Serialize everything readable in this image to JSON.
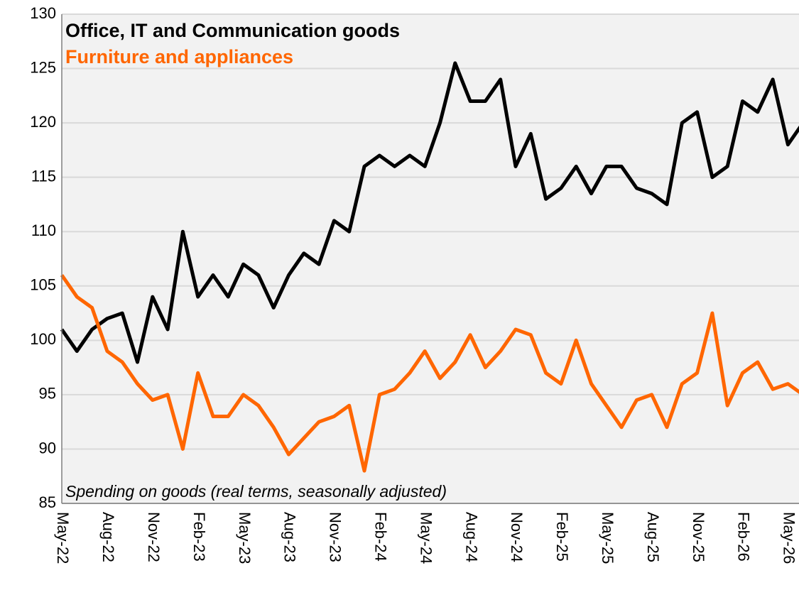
{
  "chart_data": {
    "type": "line",
    "annotation": "Spending on goods (real terms, seasonally adjusted)",
    "categories": [
      "May-22",
      null,
      null,
      "Aug-22",
      null,
      null,
      "Nov-22",
      null,
      null,
      "Feb-23",
      null,
      null,
      "May-23",
      null,
      null,
      "Aug-23",
      null,
      null,
      "Nov-23",
      null,
      null,
      "Feb-24",
      null,
      null,
      "May-24",
      null,
      null,
      "Aug-24",
      null,
      null,
      "Nov-24",
      null,
      null,
      "Feb-25",
      null,
      null,
      "May-25",
      null,
      null,
      "Aug-25",
      null,
      null,
      "Nov-25",
      null,
      null,
      "Feb-26",
      null,
      null,
      "May-26",
      null
    ],
    "series": [
      {
        "name": "Office, IT and Communication goods",
        "color": "#000000",
        "values": [
          101,
          99,
          101,
          102,
          102.5,
          98,
          104,
          101,
          110,
          104,
          106,
          104,
          107,
          106,
          103,
          106,
          108,
          107,
          111,
          110,
          116,
          117,
          116,
          117,
          116,
          120,
          125.5,
          122,
          122,
          124,
          116,
          119,
          113,
          114,
          116,
          113.5,
          116,
          116,
          114,
          113.5,
          112.5,
          120,
          121,
          115,
          116,
          122,
          121,
          124,
          118,
          120
        ]
      },
      {
        "name": "Furniture and appliances",
        "color": "#ff6600",
        "values": [
          106,
          104,
          103,
          99,
          98,
          96,
          94.5,
          95,
          90,
          97,
          93,
          93,
          95,
          94,
          92,
          89.5,
          91,
          92.5,
          93,
          94,
          88,
          95,
          95.5,
          97,
          99,
          96.5,
          98,
          100.5,
          97.5,
          99,
          101,
          100.5,
          97,
          96,
          100,
          96,
          94,
          92,
          94.5,
          95,
          92,
          96,
          97,
          102.5,
          94,
          97,
          98,
          95.5,
          96,
          95
        ]
      }
    ],
    "ylim": [
      85,
      130
    ],
    "yticks": [
      85,
      90,
      95,
      100,
      105,
      110,
      115,
      120,
      125,
      130
    ],
    "grid": true
  }
}
